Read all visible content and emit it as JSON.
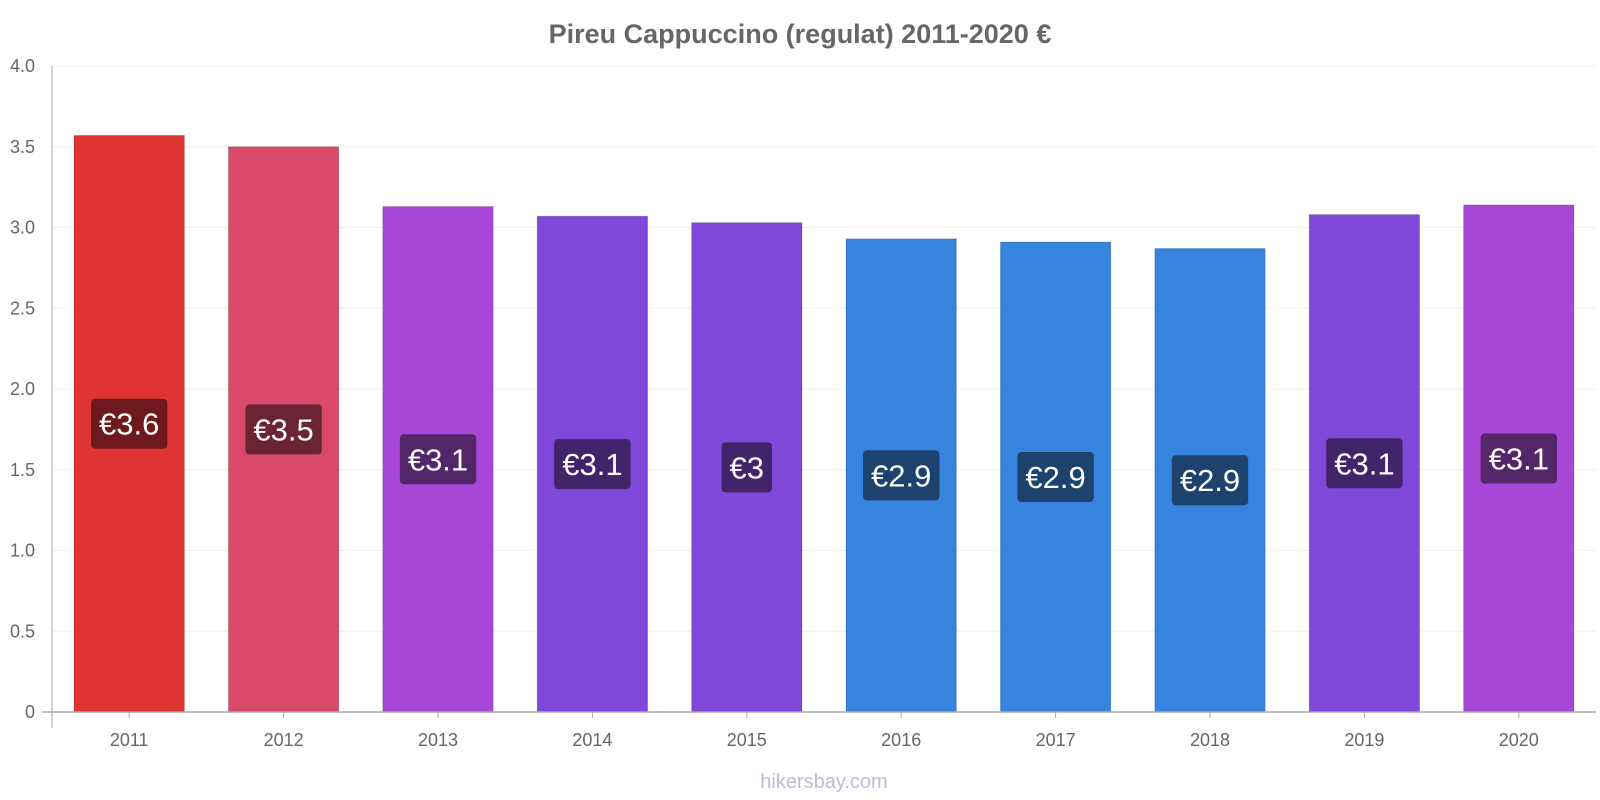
{
  "chart_data": {
    "type": "bar",
    "title": "Pireu Cappuccino (regulat) 2011-2020 €",
    "xlabel": "",
    "ylabel": "",
    "ylim": [
      0,
      4.0
    ],
    "yticks": [
      "0",
      "0.5",
      "1.0",
      "1.5",
      "2.0",
      "2.5",
      "3.0",
      "3.5",
      "4.0"
    ],
    "categories": [
      "2011",
      "2012",
      "2013",
      "2014",
      "2015",
      "2016",
      "2017",
      "2018",
      "2019",
      "2020"
    ],
    "values": [
      3.57,
      3.5,
      3.13,
      3.07,
      3.03,
      2.93,
      2.91,
      2.87,
      3.08,
      3.14
    ],
    "labels": [
      "€3.6",
      "€3.5",
      "€3.1",
      "€3.1",
      "€3",
      "€2.9",
      "€2.9",
      "€2.9",
      "€3.1",
      "€3.1"
    ],
    "bar_colors": [
      "#e03434",
      "#d84a68",
      "#a747d8",
      "#8048d8",
      "#8048d8",
      "#3684de",
      "#3684de",
      "#3684de",
      "#8048d8",
      "#a747d8"
    ],
    "label_bg_colors": [
      "#6e1a1c",
      "#6a2434",
      "#532669",
      "#41246a",
      "#41246a",
      "#1d426d",
      "#1d426d",
      "#1d426d",
      "#41246a",
      "#532669"
    ],
    "grid": true,
    "legend": "none"
  },
  "footer": {
    "watermark": "hikersbay.com"
  },
  "colors": {
    "text": "#666666",
    "axis": "#aaaaaa",
    "grid": "#f0f0f0",
    "watermark": "#b9bdd6"
  }
}
